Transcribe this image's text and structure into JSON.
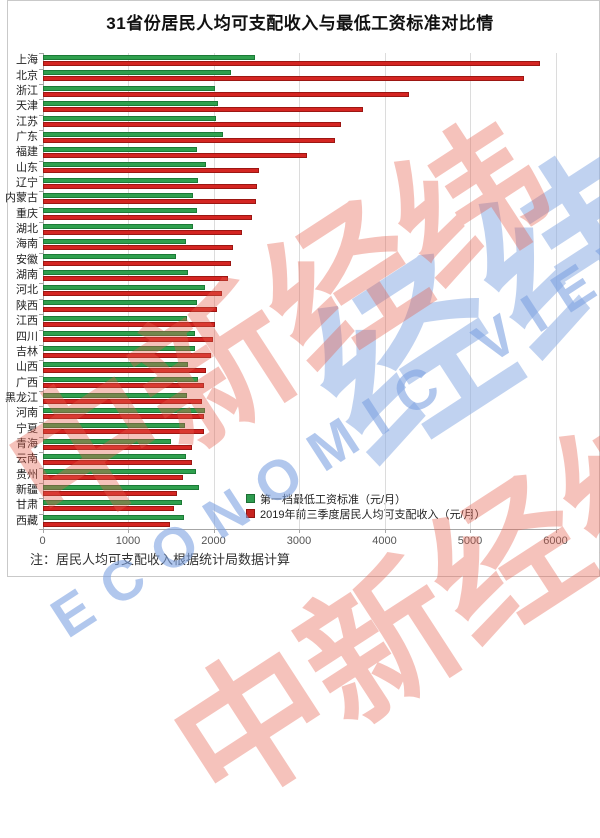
{
  "title": "31省份居民人均可支配收入与最低工资标准对比情",
  "note": "注：居民人均可支配收入根据统计局数据计算",
  "legend": [
    {
      "label": "第一档最低工资标准（元/月）",
      "color": "#2e9b4f",
      "border": "#1c6e33"
    },
    {
      "label": "2019年前三季度居民人均可支配收入（元/月）",
      "color": "#c72420",
      "border": "#911511"
    }
  ],
  "watermark": {
    "cn_large": "经纬",
    "cn_red": "中新经纬",
    "en": "ECONOMIC VIEW"
  },
  "colors": {
    "min_wage_fill": "#2fa04e",
    "min_wage_border": "#1c7a36",
    "income_fill": "#d42522",
    "income_border": "#9c1713",
    "gridline": "#dcdcdc",
    "axis": "#a6a6a6"
  },
  "chart_data": {
    "type": "bar",
    "orientation": "horizontal",
    "title": "31省份居民人均可支配收入与最低工资标准对比情",
    "xlabel": "",
    "ylabel": "",
    "xlim": [
      0,
      6000
    ],
    "xticks": [
      0,
      1000,
      2000,
      3000,
      4000,
      5000,
      6000
    ],
    "grid": true,
    "legend_position": "inside-bottom-right",
    "categories": [
      "上海",
      "北京",
      "浙江",
      "天津",
      "江苏",
      "广东",
      "福建",
      "山东",
      "辽宁",
      "内蒙古",
      "重庆",
      "湖北",
      "海南",
      "安徽",
      "湖南",
      "河北",
      "陕西",
      "江西",
      "四川",
      "吉林",
      "山西",
      "广西",
      "黑龙江",
      "河南",
      "宁夏",
      "青海",
      "云南",
      "贵州",
      "新疆",
      "甘肃",
      "西藏"
    ],
    "series": [
      {
        "name": "第一档最低工资标准（元/月）",
        "values": [
          2480,
          2200,
          2010,
          2050,
          2020,
          2100,
          1800,
          1910,
          1810,
          1760,
          1800,
          1750,
          1670,
          1550,
          1700,
          1900,
          1800,
          1680,
          1780,
          1780,
          1700,
          1810,
          1680,
          1900,
          1660,
          1500,
          1670,
          1790,
          1820,
          1620,
          1650
        ]
      },
      {
        "name": "2019年前三季度居民人均可支配收入（元/月）",
        "values": [
          5810,
          5620,
          4280,
          3740,
          3490,
          3420,
          3090,
          2530,
          2505,
          2490,
          2440,
          2330,
          2220,
          2200,
          2160,
          2090,
          2030,
          2010,
          1990,
          1960,
          1910,
          1880,
          1865,
          1885,
          1885,
          1740,
          1740,
          1635,
          1570,
          1530,
          1490
        ]
      }
    ]
  }
}
